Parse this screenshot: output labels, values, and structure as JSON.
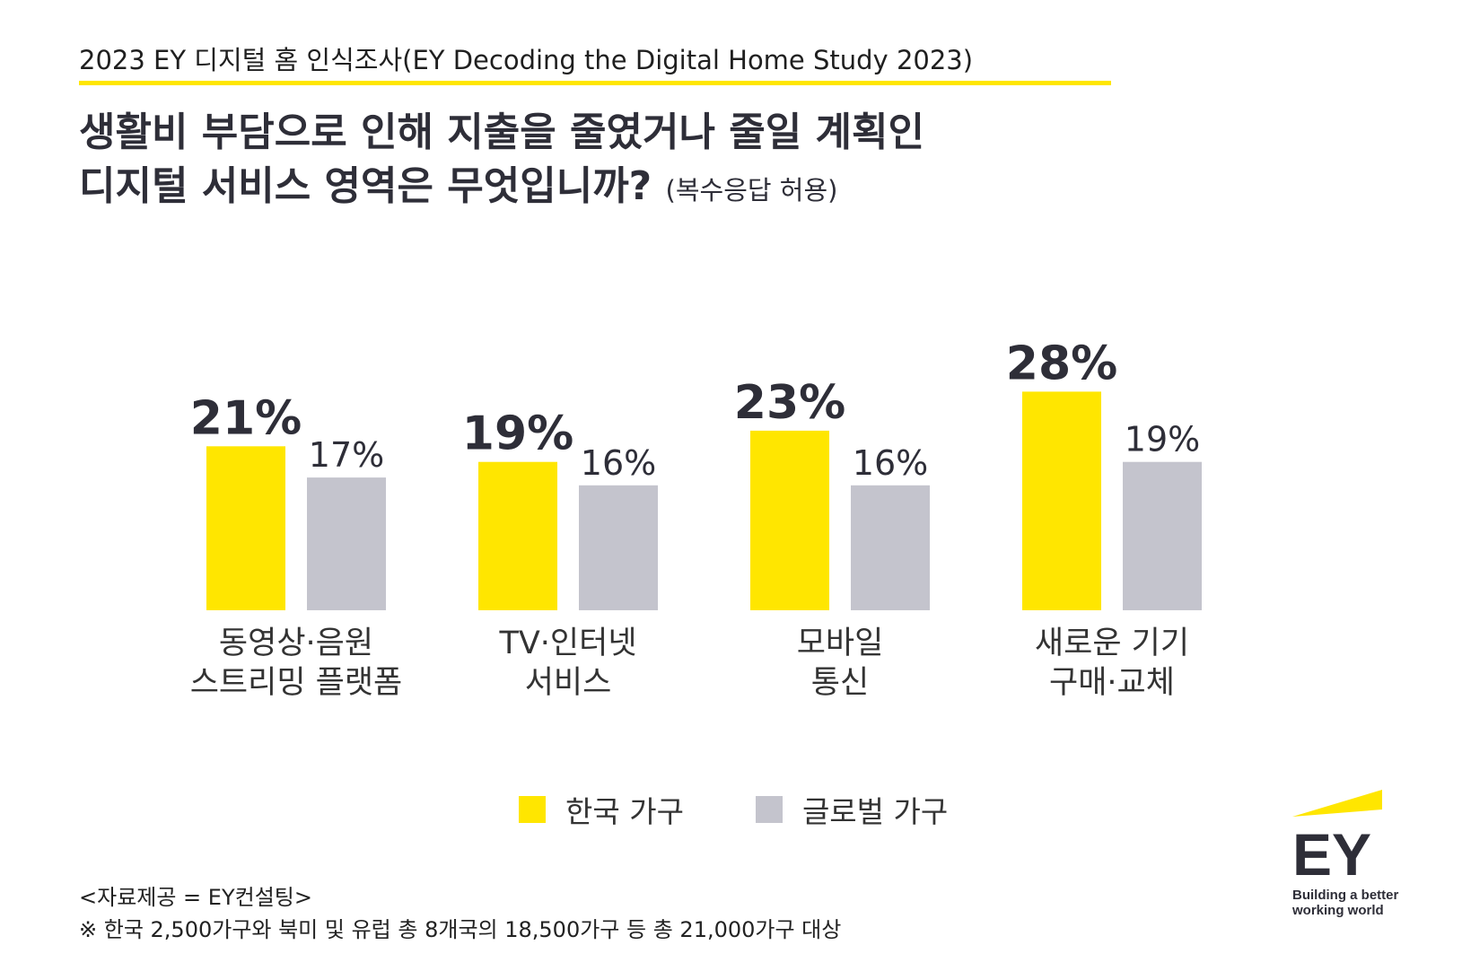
{
  "header": "2023 EY 디지털 홈 인식조사(EY Decoding the Digital Home Study 2023)",
  "title_line1": "생활비 부담으로 인해 지출을 줄였거나 줄일 계획인",
  "title_line2": "디지털 서비스 영역은 무엇입니까?",
  "title_note": "(복수응답 허용)",
  "chart_data": {
    "type": "bar",
    "categories": [
      [
        "동영상·음원",
        "스트리밍 플랫폼"
      ],
      [
        "TV·인터넷",
        "서비스"
      ],
      [
        "모바일",
        "통신"
      ],
      [
        "새로운 기기",
        "구매·교체"
      ]
    ],
    "series": [
      {
        "name": "한국 가구",
        "values": [
          21,
          19,
          23,
          28
        ],
        "labels": [
          "21%",
          "19%",
          "23%",
          "28%"
        ],
        "color": "#ffe600"
      },
      {
        "name": "글로벌 가구",
        "values": [
          17,
          16,
          16,
          19
        ],
        "labels": [
          "17%",
          "16%",
          "16%",
          "19%"
        ],
        "color": "#c4c4cd"
      }
    ],
    "unit": "%",
    "ylim": [
      0,
      30
    ],
    "grid": false,
    "legend": "bottom-center"
  },
  "footer_line1": "<자료제공 = EY컨설팅>",
  "footer_line2": "※ 한국 2,500가구와 북미 및 유럽 총 8개국의 18,500가구 등 총 21,000가구 대상",
  "logo": {
    "brand": "EY",
    "tagline_line1": "Building a better",
    "tagline_line2": "working world"
  }
}
